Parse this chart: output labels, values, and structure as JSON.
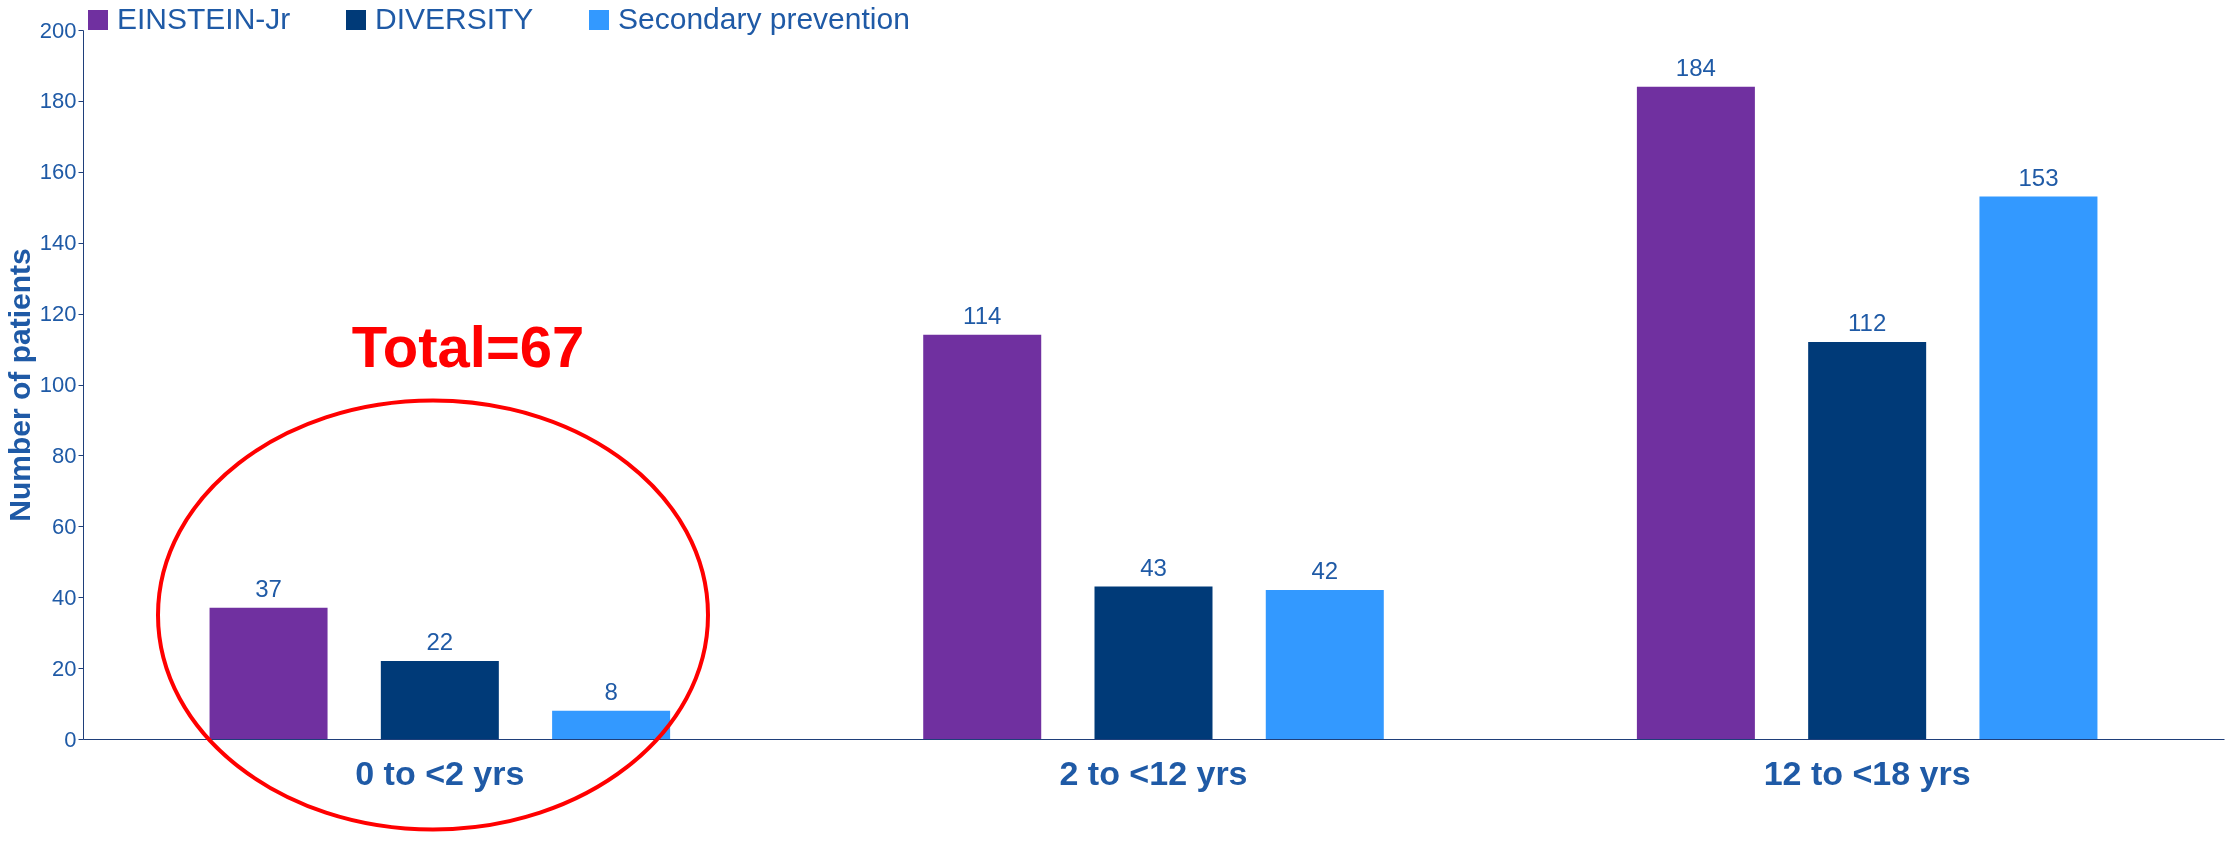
{
  "chart_data": {
    "type": "bar",
    "ylabel": "Number of patients",
    "categories": [
      "0 to <2 yrs",
      "2 to <12 yrs",
      "12 to <18 yrs"
    ],
    "series": [
      {
        "name": "EINSTEIN-Jr",
        "color": "#7030a0",
        "values": [
          37,
          114,
          184
        ]
      },
      {
        "name": "DIVERSITY",
        "color": "#003a78",
        "values": [
          22,
          43,
          112
        ]
      },
      {
        "name": "Secondary prevention",
        "color": "#3399ff",
        "values": [
          8,
          42,
          153
        ]
      }
    ],
    "ylim": [
      0,
      200
    ],
    "yticks": [
      0,
      20,
      40,
      60,
      80,
      100,
      120,
      140,
      160,
      180,
      200
    ],
    "data_labels": true,
    "grid": false,
    "legend": "top",
    "annotations": [
      "Total=67"
    ]
  }
}
